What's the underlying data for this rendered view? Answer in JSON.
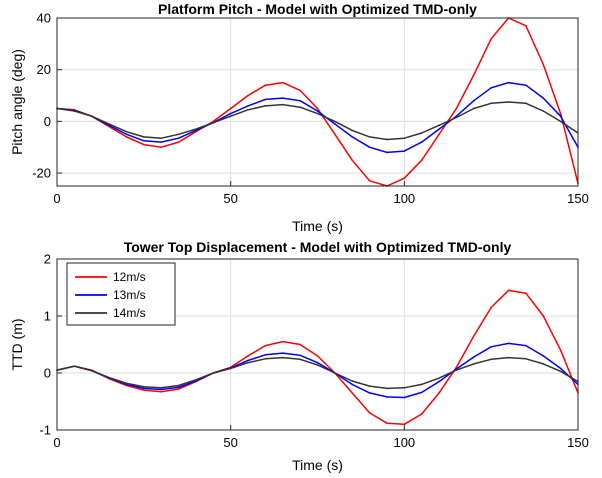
{
  "chart_data": [
    {
      "type": "line",
      "title": "Platform Pitch - Model with Optimized TMD-only",
      "xlabel": "Time (s)",
      "ylabel": "Pitch angle (deg)",
      "xlim": [
        0,
        150
      ],
      "ylim": [
        -25,
        40
      ],
      "xticks": [
        0,
        50,
        100,
        150
      ],
      "yticks": [
        -20,
        0,
        20,
        40
      ],
      "grid": true,
      "x": [
        0,
        5,
        10,
        15,
        20,
        25,
        30,
        35,
        40,
        45,
        50,
        55,
        60,
        65,
        70,
        75,
        80,
        85,
        90,
        95,
        100,
        105,
        110,
        115,
        120,
        125,
        130,
        135,
        140,
        145,
        150
      ],
      "series": [
        {
          "name": "12m/s",
          "color": "#ff0000",
          "values": [
            5,
            4.5,
            2,
            -2,
            -6,
            -9,
            -10,
            -8,
            -4,
            0,
            5,
            10,
            14,
            15,
            12,
            5,
            -5,
            -15,
            -23,
            -25,
            -22,
            -15,
            -5,
            5,
            18,
            32,
            40,
            37,
            22,
            3,
            -24
          ]
        },
        {
          "name": "13m/s",
          "color": "#0000ff",
          "values": [
            5,
            4.2,
            2,
            -1.5,
            -5,
            -7.5,
            -8,
            -6.5,
            -3.5,
            -0.5,
            3,
            6,
            8.5,
            9,
            8,
            4,
            -1,
            -6,
            -10,
            -12,
            -11.5,
            -8,
            -3,
            2,
            8,
            13,
            15,
            14,
            9,
            2,
            -10
          ]
        },
        {
          "name": "14m/s",
          "color": "#333333",
          "values": [
            5,
            4,
            2,
            -1,
            -4,
            -6,
            -6.5,
            -5,
            -3,
            -0.5,
            2,
            4.5,
            6,
            6.5,
            5.5,
            3,
            0,
            -3.5,
            -6,
            -7,
            -6.5,
            -4.5,
            -1.5,
            1.5,
            5,
            7,
            7.5,
            7,
            4,
            0,
            -4.5
          ]
        }
      ]
    },
    {
      "type": "line",
      "title": "Tower Top Displacement - Model with Optimized TMD-only",
      "xlabel": "Time (s)",
      "ylabel": "TTD (m)",
      "xlim": [
        0,
        150
      ],
      "ylim": [
        -1,
        2
      ],
      "xticks": [
        0,
        50,
        100,
        150
      ],
      "yticks": [
        -1,
        0,
        1,
        2
      ],
      "grid": true,
      "legend": "top-left",
      "x": [
        0,
        5,
        10,
        15,
        20,
        25,
        30,
        35,
        40,
        45,
        50,
        55,
        60,
        65,
        70,
        75,
        80,
        85,
        90,
        95,
        100,
        105,
        110,
        115,
        120,
        125,
        130,
        135,
        140,
        145,
        150
      ],
      "series": [
        {
          "name": "12m/s",
          "color": "#ff0000",
          "values": [
            0.05,
            0.12,
            0.05,
            -0.1,
            -0.22,
            -0.3,
            -0.33,
            -0.28,
            -0.15,
            0,
            0.1,
            0.3,
            0.48,
            0.55,
            0.5,
            0.3,
            0,
            -0.35,
            -0.7,
            -0.88,
            -0.9,
            -0.72,
            -0.35,
            0.1,
            0.65,
            1.15,
            1.45,
            1.4,
            1.0,
            0.4,
            -0.35
          ]
        },
        {
          "name": "13m/s",
          "color": "#0000ff",
          "values": [
            0.05,
            0.12,
            0.04,
            -0.09,
            -0.2,
            -0.27,
            -0.29,
            -0.25,
            -0.14,
            0,
            0.09,
            0.22,
            0.32,
            0.35,
            0.31,
            0.18,
            0,
            -0.2,
            -0.35,
            -0.42,
            -0.43,
            -0.34,
            -0.15,
            0.07,
            0.28,
            0.46,
            0.52,
            0.48,
            0.3,
            0.08,
            -0.2
          ]
        },
        {
          "name": "14m/s",
          "color": "#333333",
          "values": [
            0.05,
            0.12,
            0.04,
            -0.08,
            -0.18,
            -0.24,
            -0.26,
            -0.22,
            -0.12,
            0,
            0.08,
            0.18,
            0.25,
            0.27,
            0.24,
            0.14,
            0,
            -0.14,
            -0.23,
            -0.27,
            -0.26,
            -0.2,
            -0.09,
            0.05,
            0.16,
            0.24,
            0.27,
            0.25,
            0.16,
            0.03,
            -0.15
          ]
        }
      ]
    }
  ]
}
